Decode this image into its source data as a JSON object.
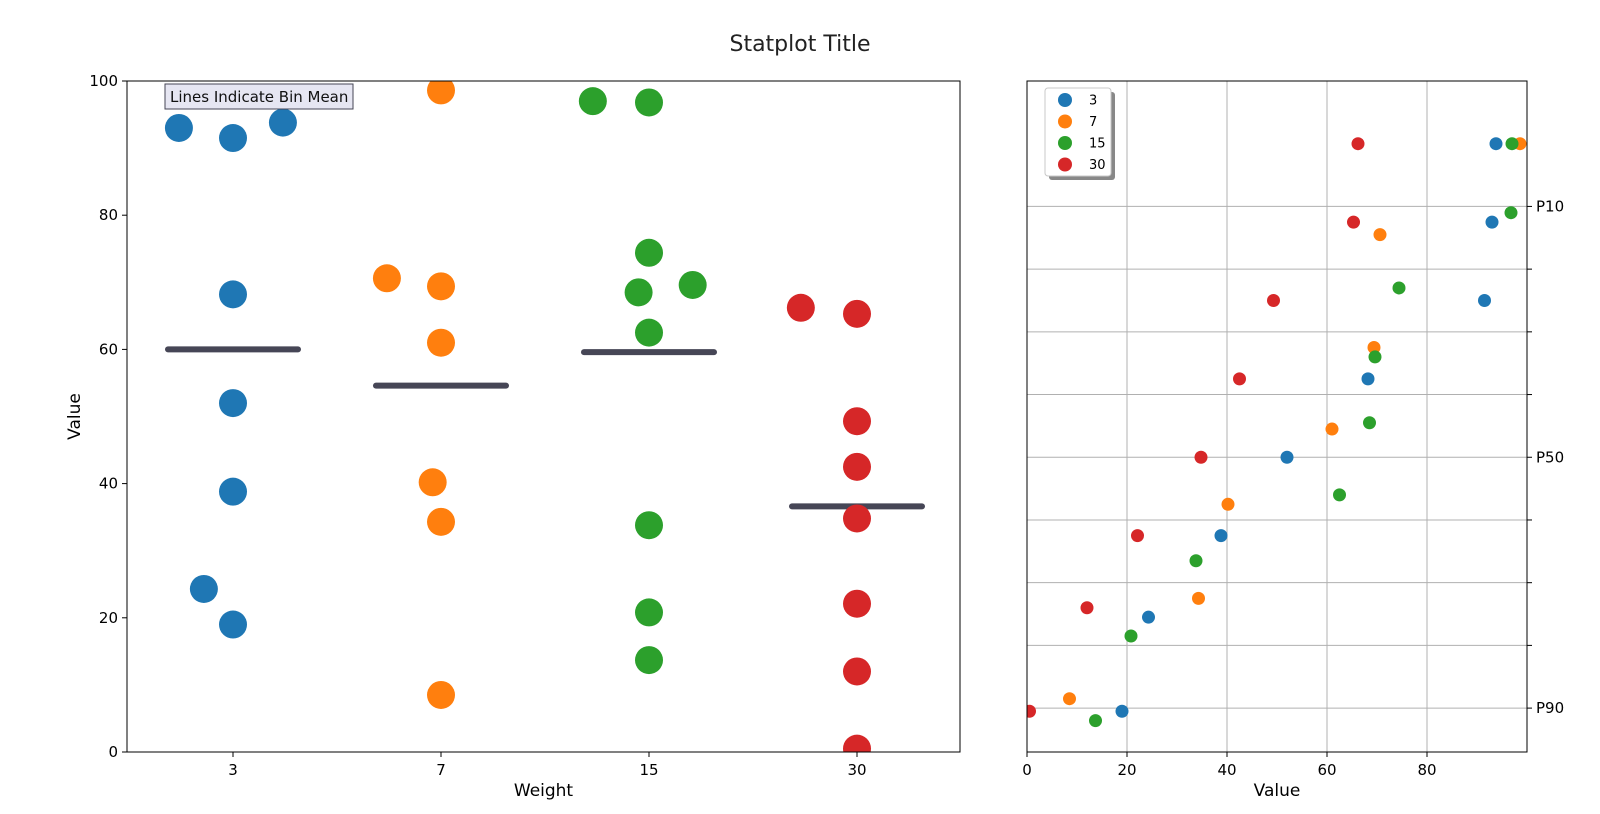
{
  "title": "Statplot Title",
  "annotation": "Lines Indicate Bin Mean",
  "colors": {
    "3": "#1f77b4",
    "7": "#ff7f0e",
    "15": "#2ca02c",
    "30": "#d62728",
    "mean_line": "#464656",
    "annotation_bg": "#e6e6f2",
    "annotation_border": "#464656",
    "grid": "#b0b0b0"
  },
  "chart_data": [
    {
      "type": "scatter",
      "xlabel": "Weight",
      "ylabel": "Value",
      "categories": [
        "3",
        "7",
        "15",
        "30"
      ],
      "ylim": [
        0,
        100
      ],
      "yticks": [
        0,
        20,
        40,
        60,
        80,
        100
      ],
      "mean_lines": [
        60.0,
        54.6,
        59.6,
        36.6
      ],
      "series": [
        {
          "name": "3",
          "points": [
            {
              "cat": 0,
              "jitter": -0.26,
              "y": 93.0
            },
            {
              "cat": 0,
              "jitter": 0.0,
              "y": 91.5
            },
            {
              "cat": 0,
              "jitter": 0.24,
              "y": 93.8
            },
            {
              "cat": 0,
              "jitter": 0.0,
              "y": 68.2
            },
            {
              "cat": 0,
              "jitter": 0.0,
              "y": 52.0
            },
            {
              "cat": 0,
              "jitter": 0.0,
              "y": 38.8
            },
            {
              "cat": 0,
              "jitter": -0.14,
              "y": 24.3
            },
            {
              "cat": 0,
              "jitter": 0.0,
              "y": 19.0
            }
          ]
        },
        {
          "name": "7",
          "points": [
            {
              "cat": 1,
              "jitter": 0.0,
              "y": 98.6
            },
            {
              "cat": 1,
              "jitter": -0.26,
              "y": 70.6
            },
            {
              "cat": 1,
              "jitter": 0.0,
              "y": 69.4
            },
            {
              "cat": 1,
              "jitter": 0.0,
              "y": 61.0
            },
            {
              "cat": 1,
              "jitter": -0.04,
              "y": 40.2
            },
            {
              "cat": 1,
              "jitter": 0.0,
              "y": 34.3
            },
            {
              "cat": 1,
              "jitter": 0.0,
              "y": 8.5
            }
          ]
        },
        {
          "name": "15",
          "points": [
            {
              "cat": 2,
              "jitter": -0.27,
              "y": 97.0
            },
            {
              "cat": 2,
              "jitter": 0.0,
              "y": 96.8
            },
            {
              "cat": 2,
              "jitter": 0.0,
              "y": 74.4
            },
            {
              "cat": 2,
              "jitter": 0.21,
              "y": 69.6
            },
            {
              "cat": 2,
              "jitter": -0.05,
              "y": 68.5
            },
            {
              "cat": 2,
              "jitter": 0.0,
              "y": 62.5
            },
            {
              "cat": 2,
              "jitter": 0.0,
              "y": 33.8
            },
            {
              "cat": 2,
              "jitter": 0.0,
              "y": 20.8
            },
            {
              "cat": 2,
              "jitter": 0.0,
              "y": 13.7
            }
          ]
        },
        {
          "name": "30",
          "points": [
            {
              "cat": 3,
              "jitter": -0.27,
              "y": 66.2
            },
            {
              "cat": 3,
              "jitter": 0.0,
              "y": 65.3
            },
            {
              "cat": 3,
              "jitter": 0.0,
              "y": 49.3
            },
            {
              "cat": 3,
              "jitter": 0.0,
              "y": 42.5
            },
            {
              "cat": 3,
              "jitter": 0.0,
              "y": 34.8
            },
            {
              "cat": 3,
              "jitter": 0.0,
              "y": 22.1
            },
            {
              "cat": 3,
              "jitter": 0.0,
              "y": 12.0
            },
            {
              "cat": 3,
              "jitter": 0.0,
              "y": 0.5
            }
          ]
        }
      ]
    },
    {
      "type": "scatter",
      "xlabel": "Value",
      "xlim": [
        0,
        100
      ],
      "xticks": [
        0,
        20,
        40,
        60,
        80
      ],
      "ylim": [
        -0.4,
        10.3
      ],
      "yticks_right": [
        {
          "pos": 8.3,
          "label": "P10"
        },
        {
          "pos": 7.3,
          "label": ""
        },
        {
          "pos": 6.3,
          "label": ""
        },
        {
          "pos": 5.3,
          "label": ""
        },
        {
          "pos": 4.3,
          "label": "P50"
        },
        {
          "pos": 3.3,
          "label": ""
        },
        {
          "pos": 2.3,
          "label": ""
        },
        {
          "pos": 1.3,
          "label": ""
        },
        {
          "pos": 0.3,
          "label": "P90"
        }
      ],
      "legend": {
        "entries": [
          "3",
          "7",
          "15",
          "30"
        ],
        "loc": "upper-left"
      },
      "series": [
        {
          "name": "3",
          "points": [
            [
              19.0,
              0.25
            ],
            [
              24.3,
              1.75
            ],
            [
              38.8,
              3.05
            ],
            [
              52.0,
              4.3
            ],
            [
              68.2,
              5.55
            ],
            [
              91.5,
              6.8
            ],
            [
              93.0,
              8.05
            ],
            [
              93.8,
              9.3
            ]
          ]
        },
        {
          "name": "7",
          "points": [
            [
              8.5,
              0.45
            ],
            [
              34.3,
              2.05
            ],
            [
              40.2,
              3.55
            ],
            [
              61.0,
              4.75
            ],
            [
              69.4,
              6.05
            ],
            [
              70.6,
              7.85
            ],
            [
              98.6,
              9.3
            ]
          ]
        },
        {
          "name": "15",
          "points": [
            [
              13.7,
              0.1
            ],
            [
              20.8,
              1.45
            ],
            [
              33.8,
              2.65
            ],
            [
              62.5,
              3.7
            ],
            [
              68.5,
              4.85
            ],
            [
              69.6,
              5.9
            ],
            [
              74.4,
              7.0
            ],
            [
              96.8,
              8.2
            ],
            [
              97.0,
              9.3
            ]
          ]
        },
        {
          "name": "30",
          "points": [
            [
              0.5,
              0.25
            ],
            [
              12.0,
              1.9
            ],
            [
              22.1,
              3.05
            ],
            [
              34.8,
              4.3
            ],
            [
              42.5,
              5.55
            ],
            [
              49.3,
              6.8
            ],
            [
              65.3,
              8.05
            ],
            [
              66.2,
              9.3
            ]
          ]
        }
      ]
    }
  ]
}
